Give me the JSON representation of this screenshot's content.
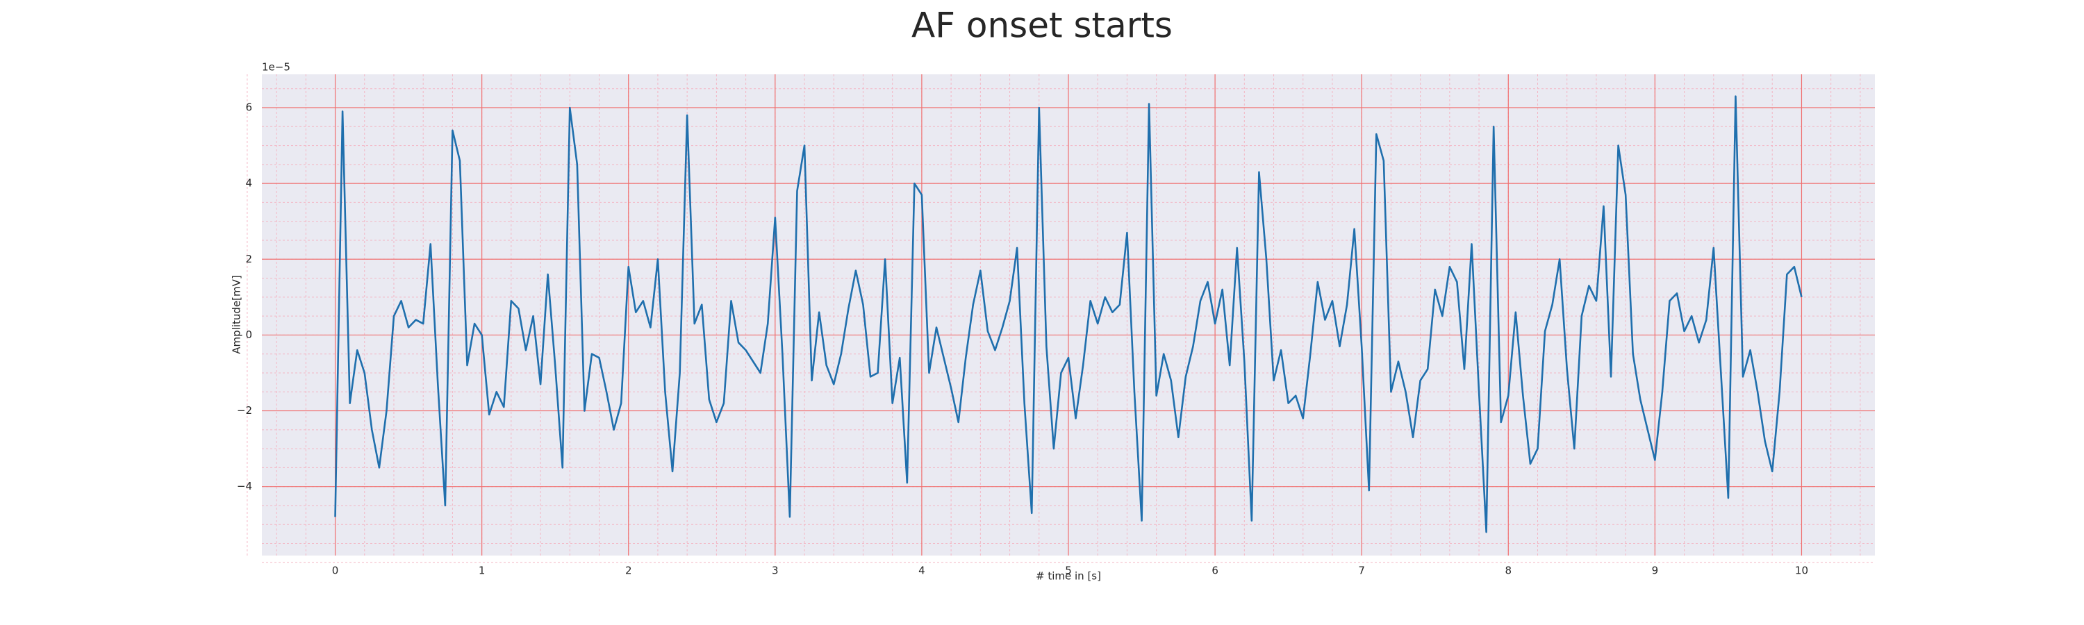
{
  "chart_data": {
    "type": "line",
    "title": "AF onset starts",
    "x_label": "# time in [s]",
    "y_label": "Amplitude[mV]",
    "y_offset_label": "1e−5",
    "xlim": [
      -0.5,
      10.5
    ],
    "ylim": [
      -5.82,
      6.88
    ],
    "xticks": [
      0,
      1,
      2,
      3,
      4,
      5,
      6,
      7,
      8,
      9,
      10
    ],
    "yticks": [
      {
        "value": -4,
        "label": "−4"
      },
      {
        "value": -2,
        "label": "−2"
      },
      0,
      2,
      4,
      6
    ],
    "grid": true,
    "minor_grid": true,
    "grid_color": "#f07070",
    "minor_grid_color": "#f3b6c4",
    "background": "#eaeaf2",
    "x": [
      0,
      0.05,
      0.1,
      0.15,
      0.2,
      0.25,
      0.3,
      0.35,
      0.4,
      0.45,
      0.5,
      0.55,
      0.6,
      0.65,
      0.7,
      0.75,
      0.8,
      0.85,
      0.9,
      0.95,
      1,
      1.05,
      1.1,
      1.15,
      1.2,
      1.25,
      1.3,
      1.35,
      1.4,
      1.45,
      1.5,
      1.55,
      1.6,
      1.65,
      1.7,
      1.75,
      1.8,
      1.85,
      1.9,
      1.95,
      2,
      2.05,
      2.1,
      2.15,
      2.2,
      2.25,
      2.3,
      2.35,
      2.4,
      2.45,
      2.5,
      2.55,
      2.6,
      2.65,
      2.7,
      2.75,
      2.8,
      2.85,
      2.9,
      2.95,
      3,
      3.05,
      3.1,
      3.15,
      3.2,
      3.25,
      3.3,
      3.35,
      3.4,
      3.45,
      3.5,
      3.55,
      3.6,
      3.65,
      3.7,
      3.75,
      3.8,
      3.85,
      3.9,
      3.95,
      4,
      4.05,
      4.1,
      4.15,
      4.2,
      4.25,
      4.3,
      4.35,
      4.4,
      4.45,
      4.5,
      4.55,
      4.6,
      4.65,
      4.7,
      4.75,
      4.8,
      4.85,
      4.9,
      4.95,
      5,
      5.05,
      5.1,
      5.15,
      5.2,
      5.25,
      5.3,
      5.35,
      5.4,
      5.45,
      5.5,
      5.55,
      5.6,
      5.65,
      5.7,
      5.75,
      5.8,
      5.85,
      5.9,
      5.95,
      6,
      6.05,
      6.1,
      6.15,
      6.2,
      6.25,
      6.3,
      6.35,
      6.4,
      6.45,
      6.5,
      6.55,
      6.6,
      6.65,
      6.7,
      6.75,
      6.8,
      6.85,
      6.9,
      6.95,
      7,
      7.05,
      7.1,
      7.15,
      7.2,
      7.25,
      7.3,
      7.35,
      7.4,
      7.45,
      7.5,
      7.55,
      7.6,
      7.65,
      7.7,
      7.75,
      7.8,
      7.85,
      7.9,
      7.95,
      8,
      8.05,
      8.1,
      8.15,
      8.2,
      8.25,
      8.3,
      8.35,
      8.4,
      8.45,
      8.5,
      8.55,
      8.6,
      8.65,
      8.7,
      8.75,
      8.8,
      8.85,
      8.9,
      8.95,
      9,
      9.05,
      9.1,
      9.15,
      9.2,
      9.25,
      9.3,
      9.35,
      9.4,
      9.45,
      9.5,
      9.55,
      9.6,
      9.65,
      9.7,
      9.75,
      9.8,
      9.85,
      9.9,
      9.95,
      10
    ],
    "series": [
      {
        "color": "#1f6fad",
        "values": [
          -4.8,
          5.9,
          -1.8,
          -0.4,
          -1.0,
          -2.5,
          -3.5,
          -2.0,
          0.5,
          0.9,
          0.2,
          0.4,
          0.3,
          2.4,
          -1.3,
          -4.5,
          5.4,
          4.6,
          -0.8,
          0.3,
          0.0,
          -2.1,
          -1.5,
          -1.9,
          0.9,
          0.7,
          -0.4,
          0.5,
          -1.3,
          1.6,
          -0.8,
          -3.5,
          6.0,
          4.5,
          -2.0,
          -0.5,
          -0.6,
          -1.5,
          -2.5,
          -1.8,
          1.8,
          0.6,
          0.9,
          0.2,
          2.0,
          -1.5,
          -3.6,
          -1.0,
          5.8,
          0.3,
          0.8,
          -1.7,
          -2.3,
          -1.8,
          0.9,
          -0.2,
          -0.4,
          -0.7,
          -1.0,
          0.3,
          3.1,
          -0.5,
          -4.8,
          3.8,
          5.0,
          -1.2,
          0.6,
          -0.8,
          -1.3,
          -0.5,
          0.7,
          1.7,
          0.8,
          -1.1,
          -1.0,
          2.0,
          -1.8,
          -0.6,
          -3.9,
          4.0,
          3.7,
          -1.0,
          0.2,
          -0.6,
          -1.4,
          -2.3,
          -0.6,
          0.8,
          1.7,
          0.1,
          -0.4,
          0.2,
          0.9,
          2.3,
          -1.8,
          -4.7,
          6.0,
          -0.3,
          -3.0,
          -1.0,
          -0.6,
          -2.2,
          -0.8,
          0.9,
          0.3,
          1.0,
          0.6,
          0.8,
          2.7,
          -1.5,
          -4.9,
          6.1,
          -1.6,
          -0.5,
          -1.2,
          -2.7,
          -1.1,
          -0.3,
          0.9,
          1.4,
          0.3,
          1.2,
          -0.8,
          2.3,
          -0.7,
          -4.9,
          4.3,
          2.0,
          -1.2,
          -0.4,
          -1.8,
          -1.6,
          -2.2,
          -0.5,
          1.4,
          0.4,
          0.9,
          -0.3,
          0.8,
          2.8,
          -0.3,
          -4.1,
          5.3,
          4.6,
          -1.5,
          -0.7,
          -1.5,
          -2.7,
          -1.2,
          -0.9,
          1.2,
          0.5,
          1.8,
          1.4,
          -0.9,
          2.4,
          -1.5,
          -5.2,
          5.5,
          -2.3,
          -1.6,
          0.6,
          -1.6,
          -3.4,
          -3.0,
          0.1,
          0.8,
          2.0,
          -0.9,
          -3.0,
          0.5,
          1.3,
          0.9,
          3.4,
          -1.1,
          5.0,
          3.7,
          -0.5,
          -1.7,
          -2.5,
          -3.3,
          -1.5,
          0.9,
          1.1,
          0.1,
          0.5,
          -0.2,
          0.4,
          2.3,
          -1.0,
          -4.3,
          6.3,
          -1.1,
          -0.4,
          -1.5,
          -2.8,
          -3.6,
          -1.5,
          1.6,
          1.8,
          1.0
        ]
      }
    ]
  }
}
